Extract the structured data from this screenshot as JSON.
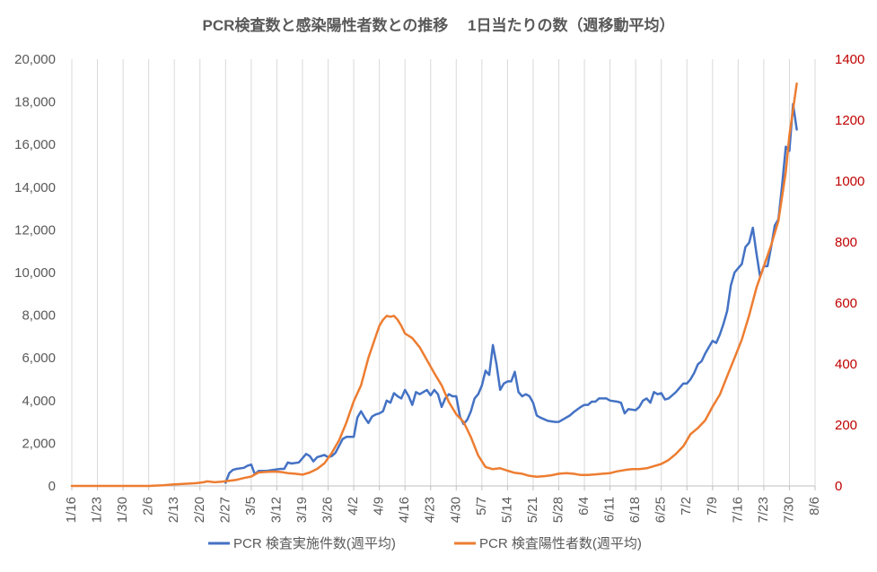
{
  "chart_data": {
    "type": "line",
    "title": "PCR検査数と感染陽性者数との推移　 1日当たりの数（週移動平均）",
    "xlabel": "",
    "ylabel": "",
    "y2label": "",
    "x_range": [
      "1/16",
      "8/6"
    ],
    "x_ticks": [
      "1/16",
      "1/23",
      "1/30",
      "2/6",
      "2/13",
      "2/20",
      "2/27",
      "3/5",
      "3/12",
      "3/19",
      "3/26",
      "4/2",
      "4/9",
      "4/16",
      "4/23",
      "4/30",
      "5/7",
      "5/14",
      "5/21",
      "5/28",
      "6/4",
      "6/11",
      "6/18",
      "6/25",
      "7/2",
      "7/9",
      "7/16",
      "7/23",
      "7/30",
      "8/6"
    ],
    "ylim": [
      0,
      20000
    ],
    "y_ticks": [
      "0",
      "2,000",
      "4,000",
      "6,000",
      "8,000",
      "10,000",
      "12,000",
      "14,000",
      "16,000",
      "18,000",
      "20,000"
    ],
    "y2lim": [
      0,
      1400
    ],
    "y2_ticks": [
      "0",
      "200",
      "400",
      "600",
      "800",
      "1000",
      "1200",
      "1400"
    ],
    "grid": "vertical",
    "legend_position": "bottom",
    "colors": {
      "tests": "#4472c4",
      "positives": "#ed7d31",
      "right_axis": "#c00000",
      "text": "#595959",
      "grid": "#d9d9d9"
    },
    "series": [
      {
        "name": "PCR 検査実施件数(週平均)",
        "axis": "left",
        "color": "#4472c4",
        "points": [
          [
            "2/27",
            150
          ],
          [
            "2/28",
            600
          ],
          [
            "2/29",
            750
          ],
          [
            "3/1",
            800
          ],
          [
            "3/3",
            850
          ],
          [
            "3/4",
            950
          ],
          [
            "3/5",
            1000
          ],
          [
            "3/6",
            550
          ],
          [
            "3/7",
            700
          ],
          [
            "3/9",
            700
          ],
          [
            "3/11",
            750
          ],
          [
            "3/13",
            800
          ],
          [
            "3/14",
            800
          ],
          [
            "3/15",
            1100
          ],
          [
            "3/16",
            1050
          ],
          [
            "3/18",
            1100
          ],
          [
            "3/19",
            1300
          ],
          [
            "3/20",
            1500
          ],
          [
            "3/21",
            1400
          ],
          [
            "3/22",
            1150
          ],
          [
            "3/23",
            1350
          ],
          [
            "3/25",
            1450
          ],
          [
            "3/26",
            1350
          ],
          [
            "3/27",
            1400
          ],
          [
            "3/28",
            1550
          ],
          [
            "3/30",
            2200
          ],
          [
            "3/31",
            2300
          ],
          [
            "4/1",
            2300
          ],
          [
            "4/2",
            2300
          ],
          [
            "4/3",
            3200
          ],
          [
            "4/4",
            3500
          ],
          [
            "4/5",
            3200
          ],
          [
            "4/6",
            2950
          ],
          [
            "4/7",
            3250
          ],
          [
            "4/8",
            3350
          ],
          [
            "4/9",
            3400
          ],
          [
            "4/10",
            3500
          ],
          [
            "4/11",
            4000
          ],
          [
            "4/12",
            3900
          ],
          [
            "4/13",
            4350
          ],
          [
            "4/14",
            4200
          ],
          [
            "4/15",
            4100
          ],
          [
            "4/16",
            4500
          ],
          [
            "4/17",
            4200
          ],
          [
            "4/18",
            3800
          ],
          [
            "4/19",
            4400
          ],
          [
            "4/20",
            4300
          ],
          [
            "4/21",
            4400
          ],
          [
            "4/22",
            4500
          ],
          [
            "4/23",
            4250
          ],
          [
            "4/24",
            4500
          ],
          [
            "4/25",
            4300
          ],
          [
            "4/26",
            3700
          ],
          [
            "4/27",
            4100
          ],
          [
            "4/28",
            4300
          ],
          [
            "4/29",
            4200
          ],
          [
            "4/30",
            4200
          ],
          [
            "5/1",
            3250
          ],
          [
            "5/2",
            2900
          ],
          [
            "5/3",
            3100
          ],
          [
            "5/4",
            3500
          ],
          [
            "5/5",
            4100
          ],
          [
            "5/6",
            4300
          ],
          [
            "5/7",
            4700
          ],
          [
            "5/8",
            5400
          ],
          [
            "5/9",
            5200
          ],
          [
            "5/10",
            6600
          ],
          [
            "5/11",
            5700
          ],
          [
            "5/12",
            4500
          ],
          [
            "5/13",
            4800
          ],
          [
            "5/14",
            4900
          ],
          [
            "5/15",
            4900
          ],
          [
            "5/16",
            5350
          ],
          [
            "5/17",
            4400
          ],
          [
            "5/18",
            4200
          ],
          [
            "5/19",
            4300
          ],
          [
            "5/20",
            4200
          ],
          [
            "5/21",
            3900
          ],
          [
            "5/22",
            3300
          ],
          [
            "5/23",
            3200
          ],
          [
            "5/25",
            3050
          ],
          [
            "5/27",
            3000
          ],
          [
            "5/28",
            3000
          ],
          [
            "5/29",
            3100
          ],
          [
            "5/31",
            3300
          ],
          [
            "6/1",
            3450
          ],
          [
            "6/3",
            3700
          ],
          [
            "6/4",
            3800
          ],
          [
            "6/5",
            3800
          ],
          [
            "6/6",
            3950
          ],
          [
            "6/7",
            3950
          ],
          [
            "6/8",
            4100
          ],
          [
            "6/10",
            4100
          ],
          [
            "6/11",
            4000
          ],
          [
            "6/13",
            3950
          ],
          [
            "6/14",
            3900
          ],
          [
            "6/15",
            3400
          ],
          [
            "6/16",
            3600
          ],
          [
            "6/18",
            3550
          ],
          [
            "6/19",
            3700
          ],
          [
            "6/20",
            4000
          ],
          [
            "6/21",
            4100
          ],
          [
            "6/22",
            3900
          ],
          [
            "6/23",
            4400
          ],
          [
            "6/24",
            4300
          ],
          [
            "6/25",
            4350
          ],
          [
            "6/26",
            4050
          ],
          [
            "6/27",
            4100
          ],
          [
            "6/28",
            4250
          ],
          [
            "6/29",
            4400
          ],
          [
            "7/1",
            4800
          ],
          [
            "7/2",
            4800
          ],
          [
            "7/3",
            5000
          ],
          [
            "7/4",
            5300
          ],
          [
            "7/5",
            5700
          ],
          [
            "7/6",
            5850
          ],
          [
            "7/7",
            6200
          ],
          [
            "7/8",
            6500
          ],
          [
            "7/9",
            6800
          ],
          [
            "7/10",
            6700
          ],
          [
            "7/11",
            7100
          ],
          [
            "7/12",
            7600
          ],
          [
            "7/13",
            8200
          ],
          [
            "7/14",
            9400
          ],
          [
            "7/15",
            10000
          ],
          [
            "7/16",
            10200
          ],
          [
            "7/17",
            10400
          ],
          [
            "7/18",
            11200
          ],
          [
            "7/19",
            11400
          ],
          [
            "7/20",
            12100
          ],
          [
            "7/21",
            10900
          ],
          [
            "7/22",
            9800
          ],
          [
            "7/23",
            10300
          ],
          [
            "7/24",
            10300
          ],
          [
            "7/25",
            11200
          ],
          [
            "7/26",
            12200
          ],
          [
            "7/27",
            12500
          ],
          [
            "7/28",
            14100
          ],
          [
            "7/29",
            15900
          ],
          [
            "7/30",
            15700
          ],
          [
            "7/31",
            17900
          ],
          [
            "8/1",
            16700
          ]
        ]
      },
      {
        "name": "PCR 検査陽性者数(週平均)",
        "axis": "right",
        "color": "#ed7d31",
        "points": [
          [
            "1/16",
            0
          ],
          [
            "2/6",
            0
          ],
          [
            "2/10",
            2
          ],
          [
            "2/13",
            5
          ],
          [
            "2/16",
            7
          ],
          [
            "2/19",
            9
          ],
          [
            "2/21",
            12
          ],
          [
            "2/22",
            15
          ],
          [
            "2/24",
            12
          ],
          [
            "2/26",
            14
          ],
          [
            "2/28",
            17
          ],
          [
            "3/1",
            20
          ],
          [
            "3/3",
            26
          ],
          [
            "3/5",
            31
          ],
          [
            "3/7",
            44
          ],
          [
            "3/9",
            46
          ],
          [
            "3/11",
            47
          ],
          [
            "3/13",
            46
          ],
          [
            "3/15",
            42
          ],
          [
            "3/17",
            40
          ],
          [
            "3/19",
            37
          ],
          [
            "3/21",
            44
          ],
          [
            "3/23",
            56
          ],
          [
            "3/25",
            74
          ],
          [
            "3/27",
            108
          ],
          [
            "3/29",
            150
          ],
          [
            "3/31",
            208
          ],
          [
            "4/2",
            278
          ],
          [
            "4/4",
            330
          ],
          [
            "4/6",
            420
          ],
          [
            "4/8",
            490
          ],
          [
            "4/9",
            525
          ],
          [
            "4/10",
            545
          ],
          [
            "4/11",
            558
          ],
          [
            "4/12",
            555
          ],
          [
            "4/13",
            558
          ],
          [
            "4/14",
            545
          ],
          [
            "4/15",
            525
          ],
          [
            "4/16",
            500
          ],
          [
            "4/18",
            485
          ],
          [
            "4/20",
            455
          ],
          [
            "4/22",
            413
          ],
          [
            "4/24",
            370
          ],
          [
            "4/26",
            330
          ],
          [
            "4/28",
            275
          ],
          [
            "4/30",
            235
          ],
          [
            "5/2",
            210
          ],
          [
            "5/4",
            160
          ],
          [
            "5/6",
            100
          ],
          [
            "5/8",
            62
          ],
          [
            "5/10",
            55
          ],
          [
            "5/12",
            58
          ],
          [
            "5/14",
            50
          ],
          [
            "5/16",
            43
          ],
          [
            "5/18",
            40
          ],
          [
            "5/20",
            33
          ],
          [
            "5/22",
            30
          ],
          [
            "5/24",
            32
          ],
          [
            "5/26",
            35
          ],
          [
            "5/28",
            40
          ],
          [
            "5/30",
            42
          ],
          [
            "6/1",
            40
          ],
          [
            "6/3",
            36
          ],
          [
            "6/5",
            36
          ],
          [
            "6/7",
            38
          ],
          [
            "6/9",
            40
          ],
          [
            "6/11",
            42
          ],
          [
            "6/13",
            48
          ],
          [
            "6/15",
            52
          ],
          [
            "6/17",
            55
          ],
          [
            "6/19",
            55
          ],
          [
            "6/21",
            58
          ],
          [
            "6/23",
            65
          ],
          [
            "6/25",
            72
          ],
          [
            "6/27",
            85
          ],
          [
            "6/29",
            105
          ],
          [
            "7/1",
            130
          ],
          [
            "7/3",
            170
          ],
          [
            "7/5",
            190
          ],
          [
            "7/7",
            215
          ],
          [
            "7/9",
            260
          ],
          [
            "7/11",
            300
          ],
          [
            "7/13",
            360
          ],
          [
            "7/15",
            420
          ],
          [
            "7/17",
            480
          ],
          [
            "7/19",
            560
          ],
          [
            "7/21",
            650
          ],
          [
            "7/23",
            720
          ],
          [
            "7/25",
            790
          ],
          [
            "7/27",
            870
          ],
          [
            "7/29",
            1030
          ],
          [
            "7/30",
            1150
          ],
          [
            "8/1",
            1320
          ]
        ]
      }
    ]
  }
}
